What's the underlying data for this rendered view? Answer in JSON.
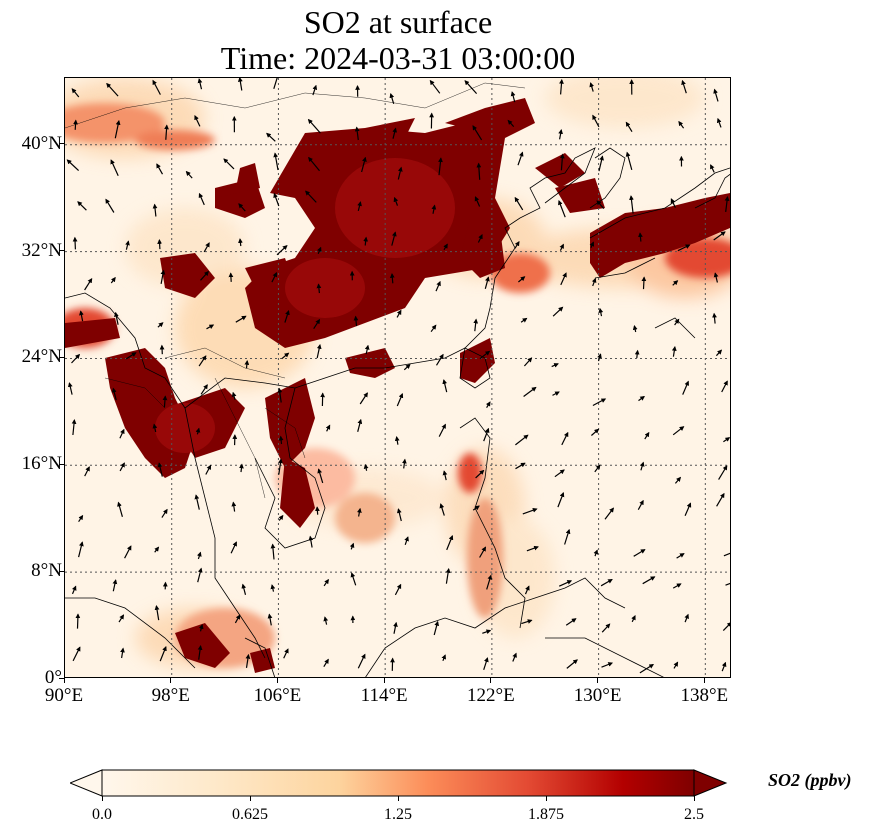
{
  "title": {
    "line1": "SO2 at surface",
    "line2": "Time: 2024-03-31 03:00:00"
  },
  "map": {
    "lon_range": [
      90,
      140
    ],
    "lat_range": [
      0,
      45
    ],
    "x_ticks": [
      {
        "value": 90,
        "label": "90°E"
      },
      {
        "value": 98,
        "label": "98°E"
      },
      {
        "value": 106,
        "label": "106°E"
      },
      {
        "value": 114,
        "label": "114°E"
      },
      {
        "value": 122,
        "label": "122°E"
      },
      {
        "value": 130,
        "label": "130°E"
      },
      {
        "value": 138,
        "label": "138°E"
      }
    ],
    "y_ticks": [
      {
        "value": 0,
        "label": "0°"
      },
      {
        "value": 8,
        "label": "8°N"
      },
      {
        "value": 16,
        "label": "16°N"
      },
      {
        "value": 24,
        "label": "24°N"
      },
      {
        "value": 32,
        "label": "32°N"
      },
      {
        "value": 40,
        "label": "40°N"
      }
    ],
    "gridlines": true,
    "colormap": "OrRd",
    "colors": {
      "low": "#fff5e8",
      "mid": "#fdd49e",
      "high": "#7f0000",
      "mid2": "#d7301f"
    }
  },
  "colorbar": {
    "label": "SO2 (ppbv)",
    "min": 0.0,
    "max": 2.5,
    "extend": "both",
    "tick_labels": [
      "0.0",
      "0.625",
      "1.25",
      "1.875",
      "2.5"
    ],
    "tick_values": [
      0.0,
      0.625,
      1.25,
      1.875,
      2.5
    ]
  }
}
